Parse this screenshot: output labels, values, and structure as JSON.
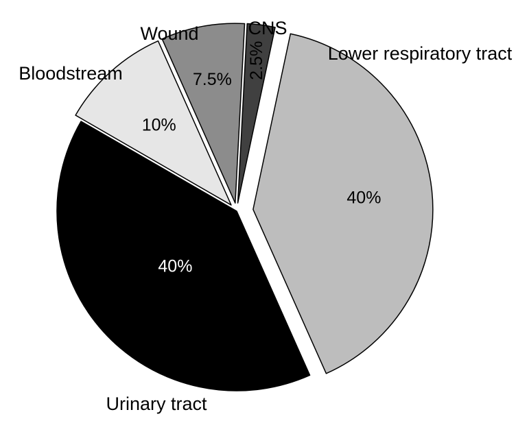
{
  "chart_data": {
    "type": "pie",
    "title": "",
    "slices": [
      {
        "label": "Lower respiratory tract",
        "value": 40,
        "value_label": "40%",
        "fill": "#bdbdbd",
        "text_color": "#000000",
        "exploded": true
      },
      {
        "label": "Urinary tract",
        "value": 40,
        "value_label": "40%",
        "fill": "#000000",
        "text_color": "#ffffff",
        "exploded": false
      },
      {
        "label": "Bloodstream",
        "value": 10,
        "value_label": "10%",
        "fill": "#e6e6e6",
        "text_color": "#000000",
        "exploded": true
      },
      {
        "label": "Wound",
        "value": 7.5,
        "value_label": "7.5%",
        "fill": "#8c8c8c",
        "text_color": "#000000",
        "exploded": true
      },
      {
        "label": "CNS",
        "value": 2.5,
        "value_label": "2.5%",
        "fill": "#404040",
        "text_color": "#000000",
        "exploded": true
      }
    ]
  }
}
